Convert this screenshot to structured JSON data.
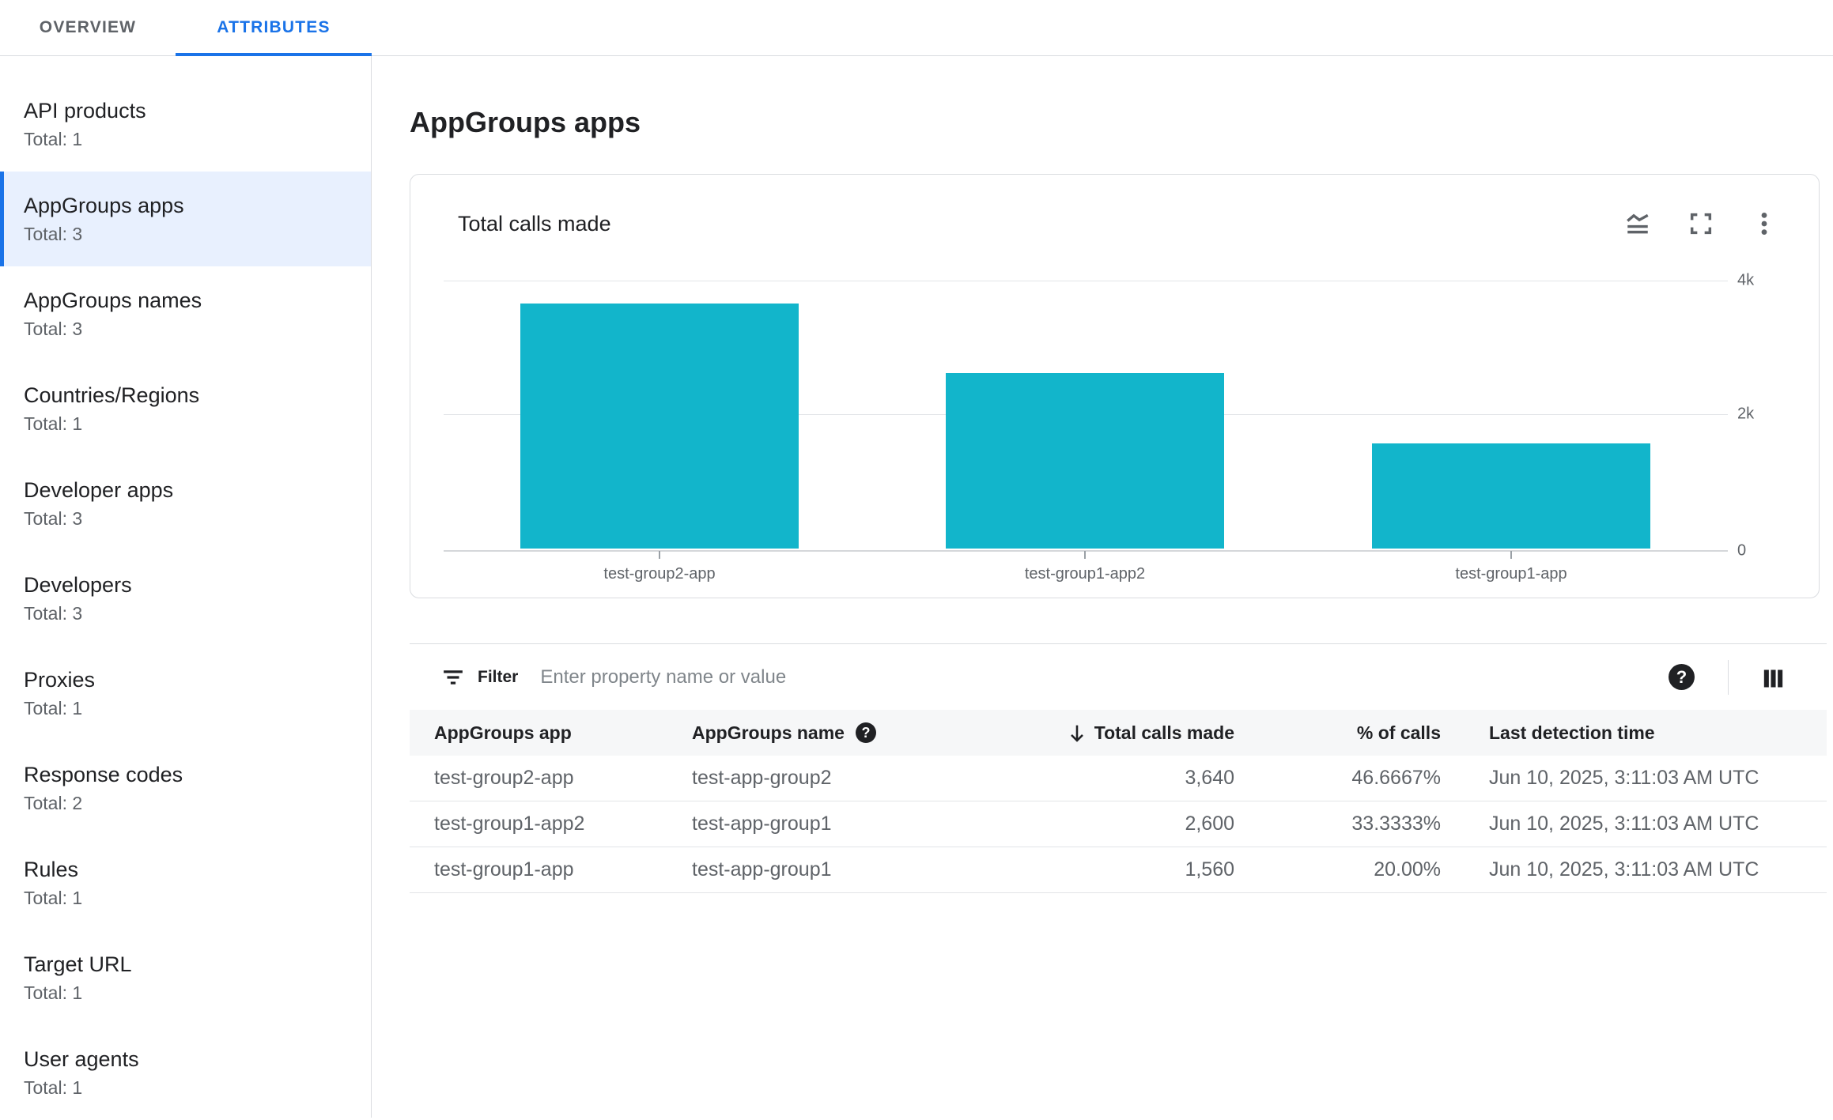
{
  "tabs": [
    {
      "label": "OVERVIEW"
    },
    {
      "label": "ATTRIBUTES",
      "active": true
    }
  ],
  "sidebar": {
    "items": [
      {
        "label": "API products",
        "total": "Total: 1"
      },
      {
        "label": "AppGroups apps",
        "total": "Total: 3",
        "selected": true
      },
      {
        "label": "AppGroups names",
        "total": "Total: 3"
      },
      {
        "label": "Countries/Regions",
        "total": "Total: 1"
      },
      {
        "label": "Developer apps",
        "total": "Total: 3"
      },
      {
        "label": "Developers",
        "total": "Total: 3"
      },
      {
        "label": "Proxies",
        "total": "Total: 1"
      },
      {
        "label": "Response codes",
        "total": "Total: 2"
      },
      {
        "label": "Rules",
        "total": "Total: 1"
      },
      {
        "label": "Target URL",
        "total": "Total: 1"
      },
      {
        "label": "User agents",
        "total": "Total: 1"
      }
    ]
  },
  "page": {
    "title": "AppGroups apps"
  },
  "chart_card": {
    "title": "Total calls made",
    "icons": [
      "area-chart-icon",
      "fullscreen-icon",
      "more-vert-icon"
    ]
  },
  "chart_data": {
    "type": "bar",
    "title": "Total calls made",
    "categories": [
      "test-group2-app",
      "test-group1-app2",
      "test-group1-app"
    ],
    "values": [
      3640,
      2600,
      1560
    ],
    "xlabel": "",
    "ylabel": "",
    "ylim": [
      0,
      4000
    ],
    "ytick_labels": [
      "4k",
      "2k",
      "0"
    ],
    "ytick_values": [
      4000,
      2000,
      0
    ],
    "bar_color": "#12b5cb",
    "grid": true,
    "legend": false,
    "y_axis_side": "right"
  },
  "filter": {
    "label": "Filter",
    "placeholder": "Enter property name or value"
  },
  "table": {
    "columns": [
      "AppGroups app",
      "AppGroups name",
      "Total calls made",
      "% of calls",
      "Last detection time"
    ],
    "sort": {
      "column": "Total calls made",
      "direction": "desc"
    },
    "rows": [
      {
        "app": "test-group2-app",
        "name": "test-app-group2",
        "calls": "3,640",
        "pct": "46.6667%",
        "time": "Jun 10, 2025, 3:11:03 AM UTC"
      },
      {
        "app": "test-group1-app2",
        "name": "test-app-group1",
        "calls": "2,600",
        "pct": "33.3333%",
        "time": "Jun 10, 2025, 3:11:03 AM UTC"
      },
      {
        "app": "test-group1-app",
        "name": "test-app-group1",
        "calls": "1,560",
        "pct": "20.00%",
        "time": "Jun 10, 2025, 3:11:03 AM UTC"
      }
    ]
  },
  "colors": {
    "accent": "#1a73e8",
    "bar": "#12b5cb",
    "selected_bg": "#e8f0fe"
  }
}
